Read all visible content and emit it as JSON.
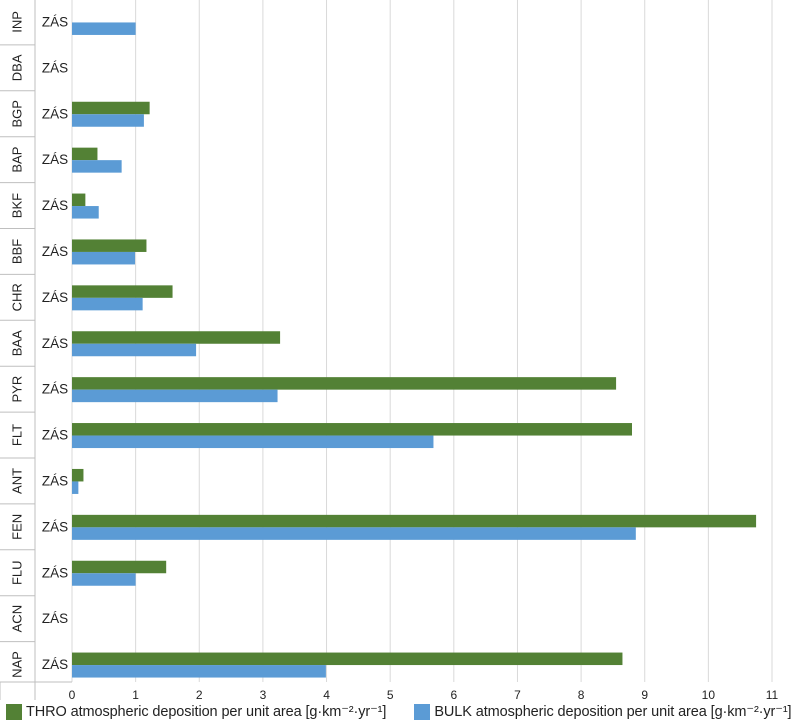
{
  "chart_data": {
    "type": "bar",
    "orientation": "horizontal",
    "categories": [
      "INP",
      "DBA",
      "BGP",
      "BAP",
      "BKF",
      "BBF",
      "CHR",
      "BAA",
      "PYR",
      "FLT",
      "ANT",
      "FEN",
      "FLU",
      "ACN",
      "NAP"
    ],
    "sublabel": "ZÁS",
    "series": [
      {
        "name": "THRO atmospheric deposition per unit area [g·km⁻²·yr⁻¹]",
        "color": "#538135",
        "values": [
          null,
          null,
          1.22,
          0.4,
          0.21,
          1.17,
          1.58,
          3.27,
          8.55,
          8.8,
          0.18,
          10.75,
          1.48,
          null,
          8.65
        ]
      },
      {
        "name": "BULK atmospheric deposition per unit area [g·km⁻²·yr⁻¹]",
        "color": "#5B9BD5",
        "values": [
          1.0,
          null,
          1.13,
          0.78,
          0.42,
          0.99,
          1.11,
          1.95,
          3.23,
          5.68,
          0.1,
          8.86,
          1.0,
          null,
          3.99
        ]
      }
    ],
    "xlim": [
      0,
      11
    ],
    "xticks": [
      "0",
      "1",
      "2",
      "3",
      "4",
      "5",
      "6",
      "7",
      "8",
      "9",
      "10",
      "11"
    ],
    "grid": "vertical",
    "legend_position": "bottom"
  }
}
